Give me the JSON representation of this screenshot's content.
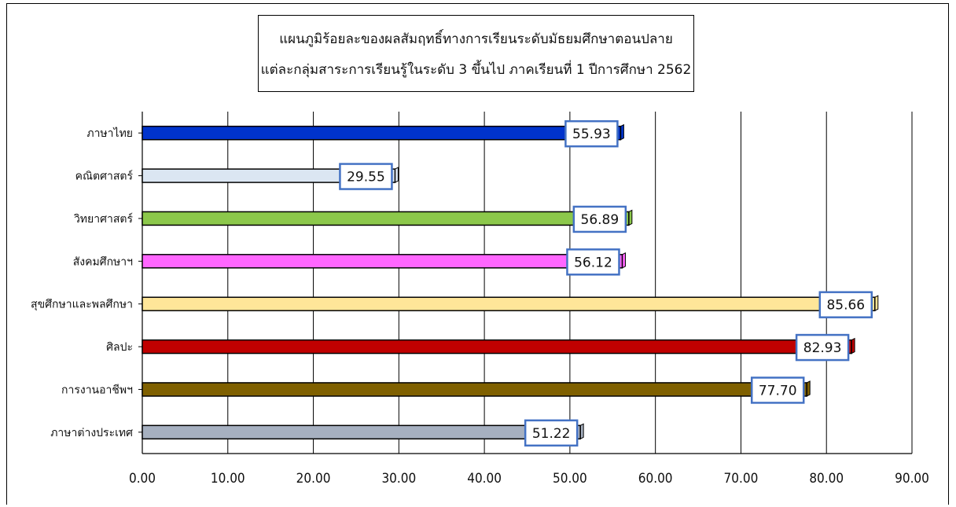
{
  "title": {
    "line1": "แผนภูมิร้อยละของผลสัมฤทธิ์ทางการเรียนระดับมัธยมศึกษาตอนปลาย",
    "line2": "แต่ละกลุ่มสาระการเรียนรู้ในระดับ 3 ขึ้นไป ภาคเรียนที่ 1 ปีการศึกษา 2562"
  },
  "chart_data": {
    "type": "bar",
    "orientation": "horizontal",
    "categories": [
      "ภาษาไทย",
      "คณิตศาสตร์",
      "วิทยาศาสตร์",
      "สังคมศึกษาฯ",
      "สุขศึกษาและพลศึกษา",
      "ศิลปะ",
      "การงานอาชีพฯ",
      "ภาษาต่างประเทศ"
    ],
    "values": [
      55.93,
      29.55,
      56.89,
      56.12,
      85.66,
      82.93,
      77.7,
      51.22
    ],
    "data_labels": [
      "55.93",
      "29.55",
      "56.89",
      "56.12",
      "85.66",
      "82.93",
      "77.70",
      "51.22"
    ],
    "colors": [
      "#0033cc",
      "#dbe6f2",
      "#8cc84b",
      "#ff66ff",
      "#ffe699",
      "#c00000",
      "#7f6000",
      "#a6b0c0"
    ],
    "xlim": [
      0,
      90
    ],
    "x_ticks": [
      0,
      10,
      20,
      30,
      40,
      50,
      60,
      70,
      80,
      90
    ],
    "x_tick_labels": [
      "0.00",
      "10.00",
      "20.00",
      "30.00",
      "40.00",
      "50.00",
      "60.00",
      "70.00",
      "80.00",
      "90.00"
    ],
    "grid": true,
    "legend": "none",
    "label_box_color": "#4472c4"
  }
}
